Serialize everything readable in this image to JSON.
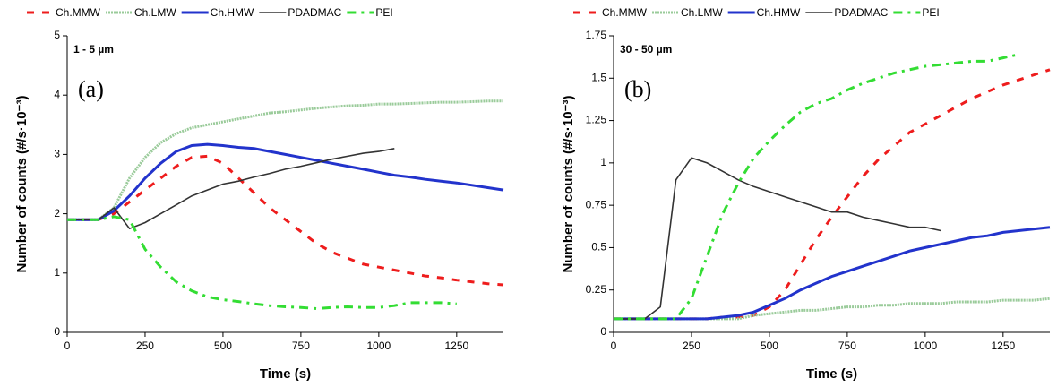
{
  "chart_data": [
    {
      "type": "line",
      "annotations": [
        "1 - 5 µm",
        "(a)"
      ],
      "x_label": "Time (s)",
      "y_label": "Number of counts (#/s·10⁻³)",
      "x": [
        0,
        50,
        100,
        150,
        200,
        250,
        300,
        350,
        400,
        450,
        500,
        550,
        600,
        650,
        700,
        750,
        800,
        850,
        900,
        950,
        1000,
        1050,
        1100,
        1150,
        1200,
        1250,
        1300,
        1350,
        1400
      ],
      "xlim": [
        0,
        1400
      ],
      "xticks": [
        0,
        250,
        500,
        750,
        1000,
        1250
      ],
      "ylim": [
        0,
        5
      ],
      "yticks": [
        0,
        1,
        2,
        3,
        4,
        5
      ],
      "grid": false,
      "legend": "top",
      "series": [
        {
          "name": "Ch.MMW",
          "color": "#ee1c1c",
          "style": "dashed",
          "values": [
            1.9,
            1.9,
            1.9,
            2.0,
            2.2,
            2.4,
            2.6,
            2.8,
            2.95,
            2.97,
            2.85,
            2.6,
            2.35,
            2.1,
            1.9,
            1.7,
            1.5,
            1.35,
            1.25,
            1.15,
            1.1,
            1.05,
            1.0,
            0.95,
            0.92,
            0.88,
            0.85,
            0.82,
            0.8
          ]
        },
        {
          "name": "Ch.LMW",
          "color": "#9acb9a",
          "style": "dotted",
          "values": [
            1.9,
            1.9,
            1.9,
            2.1,
            2.6,
            2.95,
            3.2,
            3.35,
            3.45,
            3.5,
            3.55,
            3.6,
            3.65,
            3.7,
            3.72,
            3.75,
            3.78,
            3.8,
            3.82,
            3.83,
            3.85,
            3.85,
            3.86,
            3.87,
            3.88,
            3.88,
            3.89,
            3.9,
            3.9
          ]
        },
        {
          "name": "Ch.HMW",
          "color": "#2233cc",
          "style": "thick",
          "values": [
            1.9,
            1.9,
            1.9,
            2.05,
            2.3,
            2.6,
            2.85,
            3.05,
            3.15,
            3.17,
            3.15,
            3.12,
            3.1,
            3.05,
            3.0,
            2.95,
            2.9,
            2.85,
            2.8,
            2.75,
            2.7,
            2.65,
            2.62,
            2.58,
            2.55,
            2.52,
            2.48,
            2.44,
            2.4
          ]
        },
        {
          "name": "PDADMAC",
          "color": "#333333",
          "style": "solid",
          "values": [
            1.9,
            1.9,
            1.9,
            2.1,
            1.75,
            1.85,
            2.0,
            2.15,
            2.3,
            2.4,
            2.5,
            2.55,
            2.62,
            2.68,
            2.75,
            2.8,
            2.86,
            2.92,
            2.97,
            3.02,
            3.05,
            3.1,
            null,
            null,
            null,
            null,
            null,
            null,
            null
          ]
        },
        {
          "name": "PEI",
          "color": "#33dd33",
          "style": "dashdot",
          "values": [
            1.9,
            1.9,
            1.9,
            1.95,
            1.9,
            1.4,
            1.1,
            0.85,
            0.7,
            0.6,
            0.55,
            0.52,
            0.48,
            0.45,
            0.43,
            0.42,
            0.4,
            0.42,
            0.43,
            0.42,
            0.42,
            0.45,
            0.5,
            0.5,
            0.5,
            0.48,
            null,
            null,
            null
          ]
        }
      ]
    },
    {
      "type": "line",
      "annotations": [
        "30 - 50 µm",
        "(b)"
      ],
      "x_label": "Time (s)",
      "y_label": "Number of counts (#/s·10⁻³)",
      "x": [
        0,
        50,
        100,
        150,
        200,
        250,
        300,
        350,
        400,
        450,
        500,
        550,
        600,
        650,
        700,
        750,
        800,
        850,
        900,
        950,
        1000,
        1050,
        1100,
        1150,
        1200,
        1250,
        1300,
        1350,
        1400
      ],
      "xlim": [
        0,
        1400
      ],
      "xticks": [
        0,
        250,
        500,
        750,
        1000,
        1250
      ],
      "ylim": [
        0,
        1.75
      ],
      "yticks": [
        0,
        0.25,
        0.5,
        0.75,
        1,
        1.25,
        1.5,
        1.75
      ],
      "grid": false,
      "legend": "top",
      "series": [
        {
          "name": "Ch.MMW",
          "color": "#ee1c1c",
          "style": "dashed",
          "values": [
            0.08,
            0.08,
            0.08,
            0.08,
            0.08,
            0.08,
            0.08,
            0.09,
            0.09,
            0.1,
            0.15,
            0.25,
            0.4,
            0.55,
            0.68,
            0.8,
            0.92,
            1.02,
            1.1,
            1.18,
            1.23,
            1.28,
            1.33,
            1.38,
            1.42,
            1.46,
            1.49,
            1.52,
            1.55
          ]
        },
        {
          "name": "Ch.LMW",
          "color": "#9acb9a",
          "style": "dotted",
          "values": [
            0.08,
            0.08,
            0.08,
            0.08,
            0.08,
            0.08,
            0.08,
            0.08,
            0.08,
            0.1,
            0.11,
            0.12,
            0.13,
            0.13,
            0.14,
            0.15,
            0.15,
            0.16,
            0.16,
            0.17,
            0.17,
            0.17,
            0.18,
            0.18,
            0.18,
            0.19,
            0.19,
            0.19,
            0.2
          ]
        },
        {
          "name": "Ch.HMW",
          "color": "#2233cc",
          "style": "thick",
          "values": [
            0.08,
            0.08,
            0.08,
            0.08,
            0.08,
            0.08,
            0.08,
            0.09,
            0.1,
            0.12,
            0.16,
            0.2,
            0.25,
            0.29,
            0.33,
            0.36,
            0.39,
            0.42,
            0.45,
            0.48,
            0.5,
            0.52,
            0.54,
            0.56,
            0.57,
            0.59,
            0.6,
            0.61,
            0.62
          ]
        },
        {
          "name": "PDADMAC",
          "color": "#333333",
          "style": "solid",
          "values": [
            0.08,
            0.08,
            0.08,
            0.15,
            0.9,
            1.03,
            1.0,
            0.95,
            0.9,
            0.86,
            0.83,
            0.8,
            0.77,
            0.74,
            0.71,
            0.71,
            0.68,
            0.66,
            0.64,
            0.62,
            0.62,
            0.6,
            null,
            null,
            null,
            null,
            null,
            null,
            null
          ]
        },
        {
          "name": "PEI",
          "color": "#33dd33",
          "style": "dashdot",
          "values": [
            0.08,
            0.08,
            0.08,
            0.08,
            0.08,
            0.2,
            0.45,
            0.7,
            0.88,
            1.03,
            1.13,
            1.22,
            1.3,
            1.35,
            1.38,
            1.43,
            1.47,
            1.5,
            1.53,
            1.55,
            1.57,
            1.58,
            1.59,
            1.6,
            1.6,
            1.62,
            1.64,
            null,
            null
          ]
        }
      ]
    }
  ]
}
